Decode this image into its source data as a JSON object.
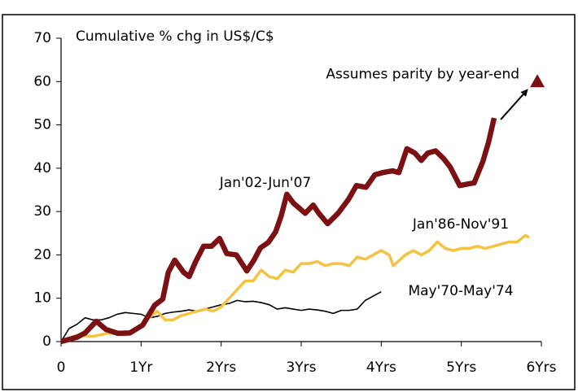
{
  "chart_data": {
    "type": "line",
    "ylabel": "Cumulative % chg in US$/C$",
    "xlim": [
      0,
      6
    ],
    "ylim": [
      0,
      70
    ],
    "xticks": [
      0,
      {
        "value": 1,
        "label": "1Yr"
      },
      {
        "value": 2,
        "label": "2Yrs"
      },
      {
        "value": 3,
        "label": "3Yrs"
      },
      {
        "value": 4,
        "label": "4Yrs"
      },
      {
        "value": 5,
        "label": "5Yrs"
      },
      {
        "value": 6,
        "label": "6Yrs"
      }
    ],
    "yticks": [
      0,
      10,
      20,
      30,
      40,
      50,
      60,
      70
    ],
    "grid": false,
    "series": [
      {
        "name": "May'70-May'74",
        "color": "#000000",
        "x": [
          0,
          0.1,
          0.2,
          0.3,
          0.4,
          0.5,
          0.6,
          0.7,
          0.8,
          0.9,
          1.0,
          1.1,
          1.2,
          1.3,
          1.4,
          1.5,
          1.6,
          1.7,
          1.8,
          1.9,
          2.0,
          2.1,
          2.2,
          2.3,
          2.4,
          2.5,
          2.6,
          2.7,
          2.8,
          2.9,
          3.0,
          3.1,
          3.2,
          3.3,
          3.4,
          3.5,
          3.6,
          3.7,
          3.8,
          3.9,
          4.0
        ],
        "values": [
          0,
          3,
          4,
          5.5,
          5,
          5,
          5.5,
          6.3,
          6.7,
          6.5,
          6.3,
          5.5,
          5.8,
          6.5,
          6.8,
          7,
          7.3,
          7,
          7.5,
          8,
          8.5,
          8.8,
          9.5,
          9.2,
          9.3,
          9,
          8.5,
          7.5,
          7.8,
          7.5,
          7.2,
          7.5,
          7.3,
          7,
          6.5,
          7.2,
          7.2,
          7.5,
          9.5,
          10.5,
          11.5
        ]
      },
      {
        "name": "Jan'86-Nov'91",
        "color": "#f5c242",
        "x": [
          0,
          0.2,
          0.4,
          0.6,
          0.8,
          1.0,
          1.1,
          1.2,
          1.3,
          1.4,
          1.5,
          1.6,
          1.7,
          1.8,
          1.9,
          2.0,
          2.1,
          2.2,
          2.3,
          2.4,
          2.5,
          2.6,
          2.7,
          2.8,
          2.9,
          3.0,
          3.1,
          3.2,
          3.3,
          3.4,
          3.5,
          3.6,
          3.7,
          3.8,
          3.9,
          4.0,
          4.1,
          4.15,
          4.3,
          4.4,
          4.5,
          4.6,
          4.7,
          4.8,
          4.9,
          5.0,
          5.1,
          5.2,
          5.3,
          5.4,
          5.5,
          5.6,
          5.7,
          5.8,
          5.85
        ],
        "values": [
          0,
          1.5,
          1.2,
          2,
          1.5,
          3.5,
          5.5,
          7,
          5,
          5,
          6,
          6.5,
          7,
          7.5,
          7,
          8,
          10,
          12,
          14,
          14,
          16.5,
          15,
          14.5,
          16.5,
          16,
          18,
          18,
          18.5,
          17.5,
          18,
          18,
          17.5,
          19.5,
          19,
          20,
          21,
          20,
          17.5,
          20,
          21,
          20,
          21,
          23,
          21.5,
          21,
          21.5,
          21.5,
          22,
          21.5,
          22,
          22.5,
          23,
          23,
          24.5,
          24
        ]
      },
      {
        "name": "Jan'02-Jun'07",
        "color": "#7b1113",
        "x": [
          0,
          0.2,
          0.3,
          0.44,
          0.56,
          0.71,
          0.86,
          1.02,
          1.17,
          1.27,
          1.34,
          1.42,
          1.53,
          1.6,
          1.68,
          1.78,
          1.88,
          1.98,
          2.07,
          2.19,
          2.32,
          2.41,
          2.49,
          2.59,
          2.68,
          2.75,
          2.82,
          2.9,
          3.05,
          3.15,
          3.22,
          3.33,
          3.46,
          3.59,
          3.69,
          3.81,
          3.92,
          4.02,
          4.14,
          4.22,
          4.32,
          4.42,
          4.5,
          4.58,
          4.68,
          4.78,
          4.86,
          4.98,
          5.09,
          5.16,
          5.27,
          5.34,
          5.41
        ],
        "values": [
          0,
          1,
          2,
          4.7,
          2.8,
          1.9,
          2,
          3.8,
          8.4,
          9.8,
          16,
          18.8,
          16,
          15,
          18.4,
          22,
          22,
          23.8,
          20.3,
          20,
          16.3,
          18.8,
          21.6,
          22.9,
          25.3,
          29,
          34,
          32,
          29.6,
          31.5,
          29.6,
          27.2,
          29.6,
          32.8,
          36,
          35.6,
          38.5,
          39,
          39.4,
          39,
          44.5,
          43.5,
          41.8,
          43.5,
          44,
          42.2,
          40.3,
          36,
          36.4,
          36.6,
          41.6,
          46,
          51.6
        ]
      }
    ],
    "annotations": [
      {
        "text": "Assumes parity by year-end",
        "x": 5.95,
        "y": 60,
        "color": "#7b1113"
      }
    ]
  }
}
